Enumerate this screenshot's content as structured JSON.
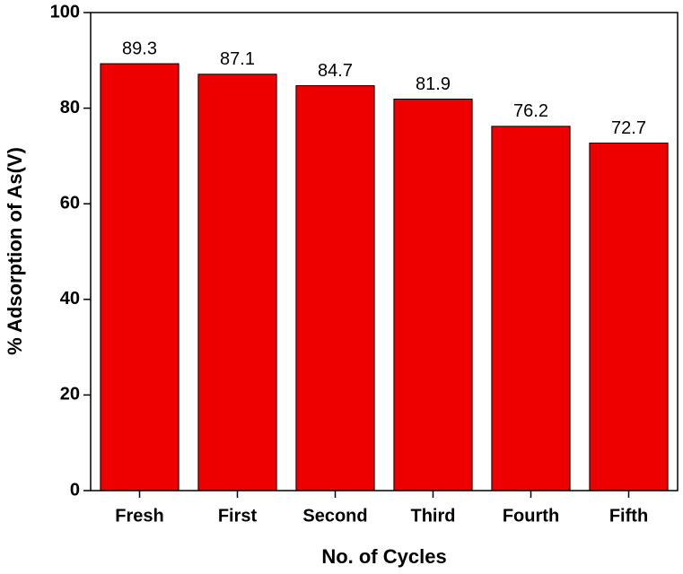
{
  "chart_data": {
    "type": "bar",
    "x_label": "No. of Cycles",
    "y_label": "% Adsorption of As(V)",
    "categories": [
      "Fresh",
      "First",
      "Second",
      "Third",
      "Fourth",
      "Fifth"
    ],
    "values": [
      89.3,
      87.1,
      84.7,
      81.9,
      76.2,
      72.7
    ],
    "color": "#ee0000",
    "ylim": [
      0,
      100
    ],
    "yticks": [
      0,
      20,
      40,
      60,
      80,
      100
    ],
    "grid": false
  }
}
